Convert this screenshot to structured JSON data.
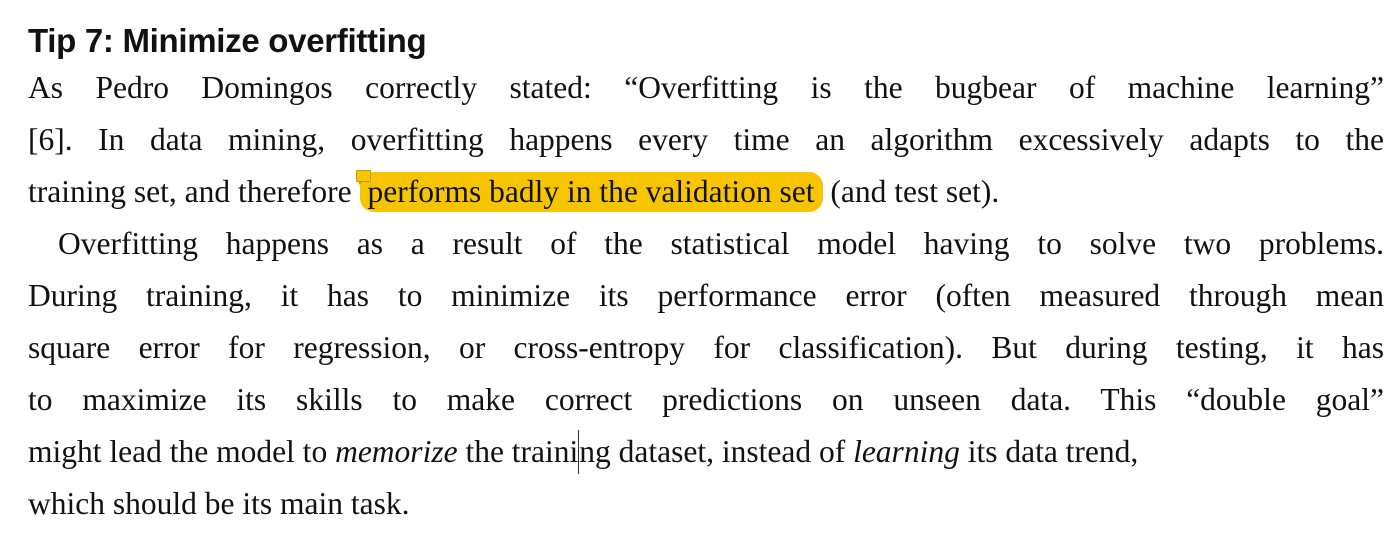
{
  "section": {
    "heading": "Tip 7: Minimize overfitting"
  },
  "paragraph1": {
    "line1": "As Pedro Domingos correctly stated: “Overfitting is the bugbear of machine learning”",
    "line2": "[6]. In data mining, overfitting happens every time an algorithm excessively adapts to the",
    "line3_before": "training set, and therefore",
    "line3_highlight": "performs badly in the validation set",
    "line3_after": "(and test set).",
    "highlight_color": "#f7c500"
  },
  "paragraph2": {
    "line1": "Overfitting happens as a result of the statistical model having to solve two problems.",
    "line2": "During training, it has to minimize its performance error (often measured through mean",
    "line3": "square error for regression, or cross-entropy for classification). But during testing, it has",
    "line4": "to maximize its skills to make correct predictions on unseen data. This “double goal”",
    "line5_a": "might lead the model to",
    "line5_em1": "memorize",
    "line5_b": "the traini",
    "line5_c": "ng dataset, instead of",
    "line5_em2": "learning",
    "line5_d": "its data trend,",
    "line6": "which should be its main task."
  }
}
